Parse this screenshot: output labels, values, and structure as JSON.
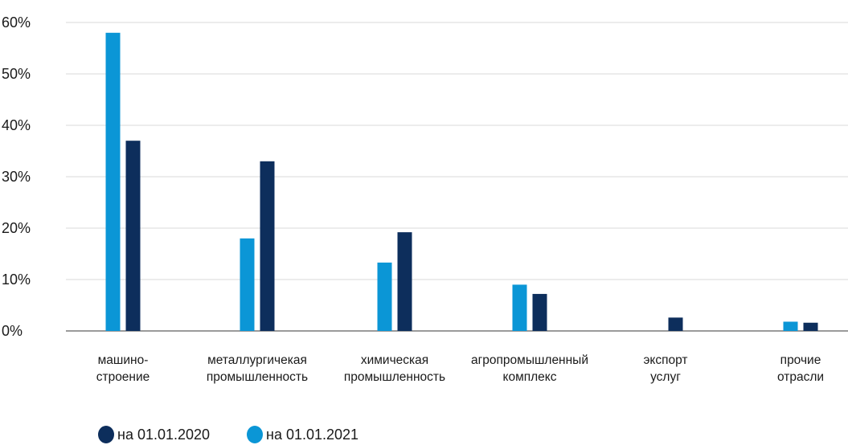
{
  "chart_data": {
    "type": "bar",
    "categories": [
      [
        "машино-",
        "строение"
      ],
      [
        "металлургичекая",
        "промышленность"
      ],
      [
        "химическая",
        "промышленность"
      ],
      [
        "агропромышленный",
        "комплекс"
      ],
      [
        "экспорт",
        "услуг"
      ],
      [
        "прочие",
        "отрасли"
      ]
    ],
    "series": [
      {
        "name": "на 01.01.2021",
        "color": "#0b96d6",
        "values": [
          58,
          18,
          13.3,
          9,
          0,
          1.8
        ]
      },
      {
        "name": "на 01.01.2020",
        "color": "#0d2e5c",
        "values": [
          37,
          33,
          19.2,
          7.2,
          2.6,
          1.6
        ]
      }
    ],
    "legend_order": [
      1,
      0
    ],
    "legend_position": "bottom-left",
    "y_ticks": [
      "0%",
      "10%",
      "20%",
      "30%",
      "40%",
      "50%",
      "60%"
    ],
    "ylim": [
      0,
      60
    ],
    "grid": true,
    "title": "",
    "xlabel": "",
    "ylabel": ""
  }
}
